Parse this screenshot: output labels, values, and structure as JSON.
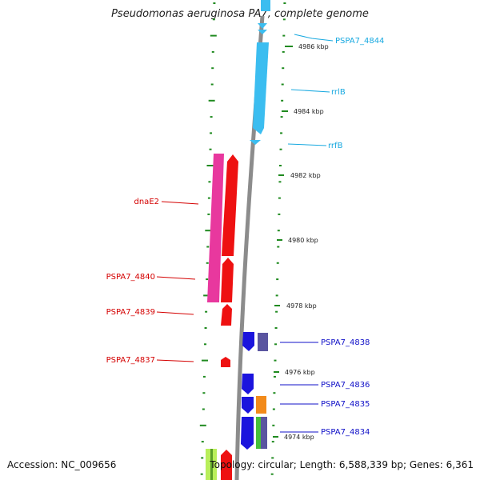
{
  "title": "Pseudomonas aeruginosa PA7, complete genome",
  "footer": {
    "accession": "Accession: NC_009656",
    "stats": "Topology: circular; Length: 6,588,339 bp; Genes: 6,361"
  },
  "colors": {
    "cyan_feature": "#3bbdf0",
    "red_feature": "#ee1111",
    "magenta_feature": "#e8389e",
    "blue_feature": "#1b14dd",
    "slate_feature": "#5a55a0",
    "orange_feature": "#f28a1a",
    "green_feature": "#45c03a",
    "lime_feature": "#b8ef5a",
    "tick_green": "#1f8a1f",
    "backbone": "#8c8c8c",
    "label_cyan": "#18a9e0",
    "label_red": "#d40000",
    "label_blue": "#1010c8"
  },
  "kbp_ticks": [
    "4986 kbp",
    "4984 kbp",
    "4982 kbp",
    "4980 kbp",
    "4978 kbp",
    "4976 kbp",
    "4974 kbp"
  ],
  "gene_labels": {
    "pspa7_4844": "PSPA7_4844",
    "rrlb": "rrlB",
    "rrfb": "rrfB",
    "dnae2": "dnaE2",
    "pspa7_4840": "PSPA7_4840",
    "pspa7_4839": "PSPA7_4839",
    "pspa7_4837": "PSPA7_4837",
    "pspa7_4838": "PSPA7_4838",
    "pspa7_4836": "PSPA7_4836",
    "pspa7_4835": "PSPA7_4835",
    "pspa7_4834": "PSPA7_4834"
  }
}
